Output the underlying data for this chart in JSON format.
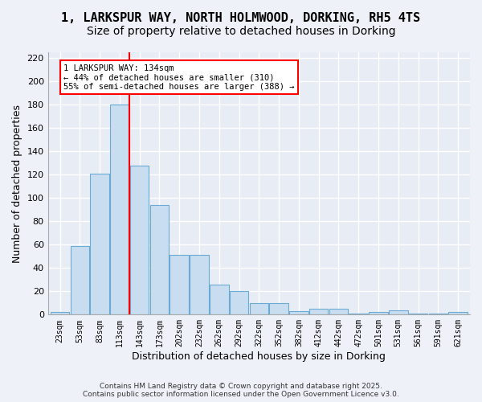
{
  "title": "1, LARKSPUR WAY, NORTH HOLMWOOD, DORKING, RH5 4TS",
  "subtitle": "Size of property relative to detached houses in Dorking",
  "xlabel": "Distribution of detached houses by size in Dorking",
  "ylabel": "Number of detached properties",
  "bar_color": "#c8ddf0",
  "bar_edge_color": "#6aaad4",
  "background_color": "#e8edf5",
  "grid_color": "#ffffff",
  "categories": [
    "23sqm",
    "53sqm",
    "83sqm",
    "113sqm",
    "143sqm",
    "173sqm",
    "202sqm",
    "232sqm",
    "262sqm",
    "292sqm",
    "322sqm",
    "352sqm",
    "382sqm",
    "412sqm",
    "442sqm",
    "472sqm",
    "501sqm",
    "531sqm",
    "561sqm",
    "591sqm",
    "621sqm"
  ],
  "values": [
    2,
    59,
    121,
    180,
    128,
    94,
    51,
    51,
    26,
    20,
    10,
    10,
    3,
    5,
    5,
    1,
    2,
    4,
    1,
    1,
    2
  ],
  "red_line_x": 3.5,
  "annotation_text": "1 LARKSPUR WAY: 134sqm\n← 44% of detached houses are smaller (310)\n55% of semi-detached houses are larger (388) →",
  "ylim": [
    0,
    225
  ],
  "yticks": [
    0,
    20,
    40,
    60,
    80,
    100,
    120,
    140,
    160,
    180,
    200,
    220
  ],
  "copyright_text": "Contains HM Land Registry data © Crown copyright and database right 2025.\nContains public sector information licensed under the Open Government Licence v3.0.",
  "title_fontsize": 11,
  "subtitle_fontsize": 10,
  "xlabel_fontsize": 9,
  "ylabel_fontsize": 9,
  "fig_facecolor": "#eef1f8"
}
